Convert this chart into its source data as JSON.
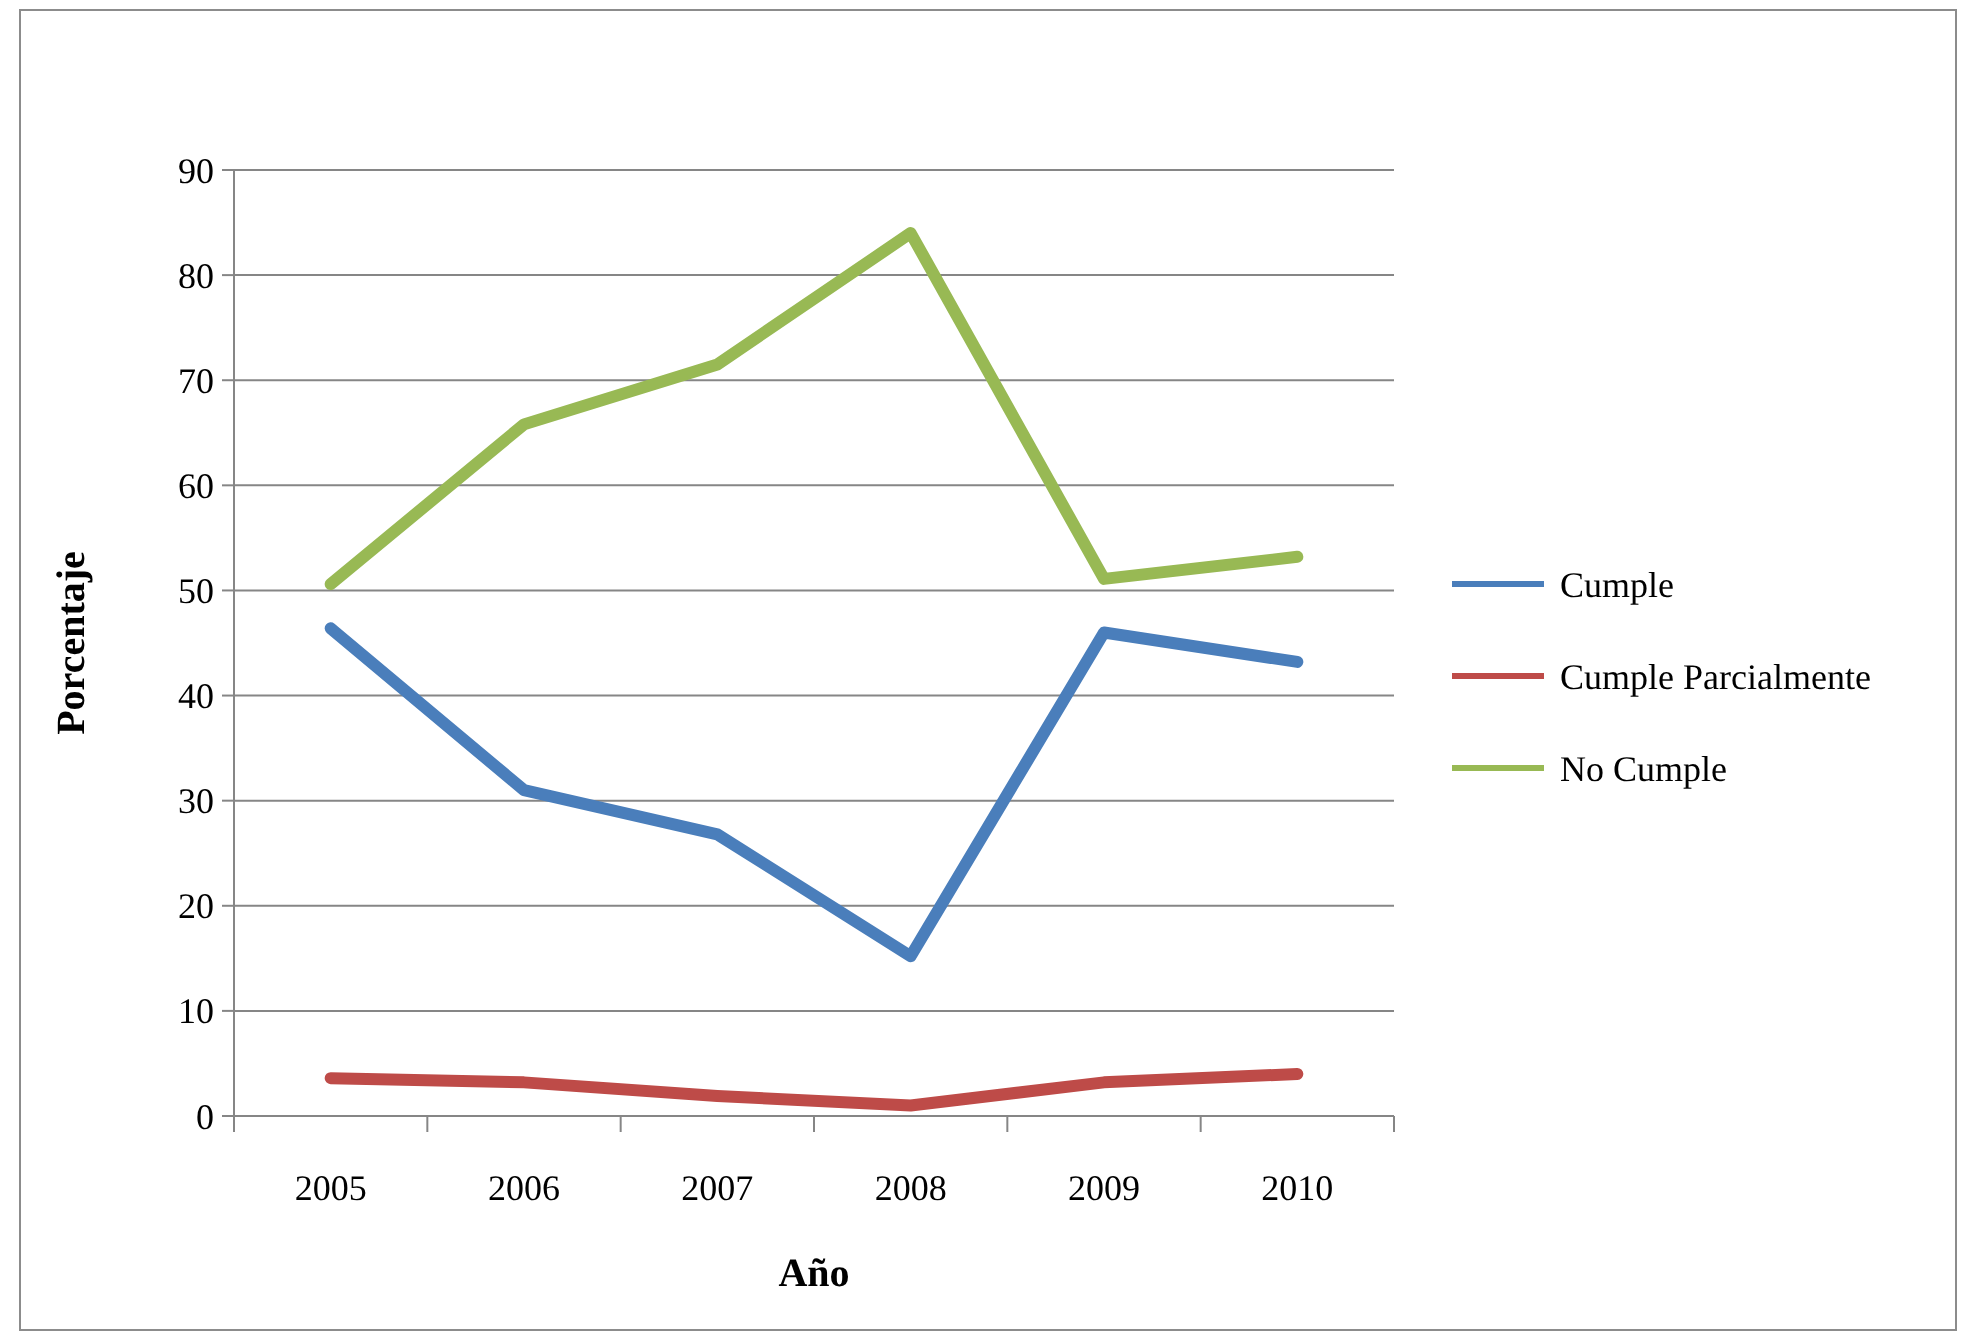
{
  "chart_data": {
    "type": "line",
    "xlabel": "Año",
    "ylabel": "Porcentaje",
    "categories": [
      "2005",
      "2006",
      "2007",
      "2008",
      "2009",
      "2010"
    ],
    "series": [
      {
        "name": "Cumple",
        "color": "#4a7ebb",
        "values": [
          46.4,
          31,
          26.8,
          15.2,
          46,
          43.2
        ]
      },
      {
        "name": "Cumple Parcialmente",
        "color": "#be4b48",
        "values": [
          3.6,
          3.2,
          1.9,
          1,
          3.2,
          4
        ]
      },
      {
        "name": "No Cumple",
        "color": "#98b954",
        "values": [
          50.6,
          65.8,
          71.5,
          84,
          51.1,
          53.2
        ]
      }
    ],
    "ylim": [
      0,
      90
    ],
    "yticks": [
      0,
      10,
      20,
      30,
      40,
      50,
      60,
      70,
      80,
      90
    ],
    "grid": "y",
    "legend": "right",
    "marker": "none",
    "line_style": "solid"
  }
}
